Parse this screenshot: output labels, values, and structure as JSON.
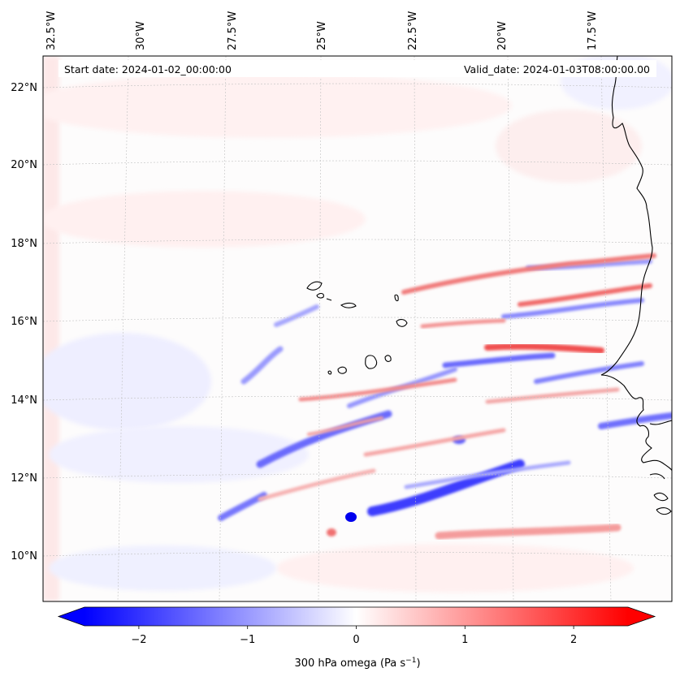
{
  "header": {
    "start_date": "Start date: 2024-01-02_00:00:00",
    "valid_date": "Valid_date: 2024-01-03T08:00:00.00"
  },
  "axes": {
    "lon_labels": [
      "32.5°W",
      "30°W",
      "27.5°W",
      "25°W",
      "22.5°W",
      "20°W",
      "17.5°W"
    ],
    "lat_labels": [
      "22°N",
      "20°N",
      "18°N",
      "16°N",
      "14°N",
      "12°N",
      "10°N"
    ]
  },
  "colorbar": {
    "ticks": [
      "−2",
      "−1",
      "0",
      "1",
      "2"
    ],
    "tick_values": [
      -2,
      -1,
      0,
      1,
      2
    ],
    "range": [
      -2.5,
      2.5
    ],
    "label": "300 hPa omega (Pa s",
    "label_sup": "−1",
    "label_end": ")",
    "negative_color": "#0000ff",
    "neutral_color": "#ffffff",
    "positive_color": "#ff0000"
  },
  "map": {
    "field": "300 hPa omega",
    "frame_color": "#000000",
    "coastline_color": "#000000",
    "gridline_color": "#b0b0b0"
  }
}
